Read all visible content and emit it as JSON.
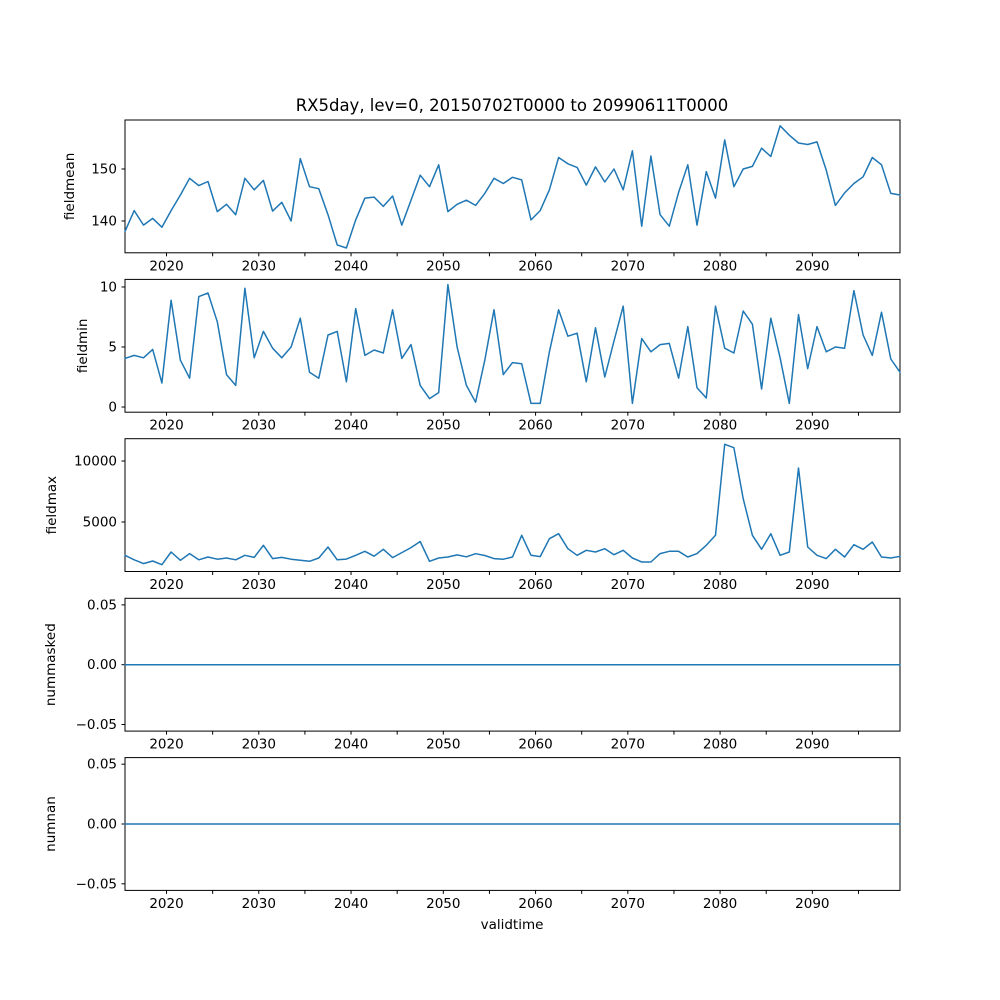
{
  "figure": {
    "title": "RX5day, lev=0, 20150702T0000 to 20990611T0000",
    "xlabel": "validtime",
    "background": "#ffffff",
    "line_color": "#1f77b4",
    "axis_color": "#000000"
  },
  "x_axis": {
    "label": "validtime",
    "major_tick_labels": [
      "2020",
      "2030",
      "2040",
      "2050",
      "2060",
      "2070",
      "2080",
      "2090"
    ],
    "major_ticks": [
      2020,
      2030,
      2040,
      2050,
      2060,
      2070,
      2080,
      2090
    ],
    "minor_ticks": [
      2025,
      2035,
      2045,
      2055,
      2065,
      2075,
      2085,
      2095
    ],
    "range": [
      2015.5,
      2099.5
    ]
  },
  "chart_data": [
    {
      "type": "line",
      "name": "fieldmean",
      "ylabel": "fieldmean",
      "x_start": 2015.5,
      "x_step": 1,
      "ylim": [
        133.88,
        159.42
      ],
      "ytick_values": [
        140,
        150
      ],
      "ytick_labels": [
        "140",
        "150"
      ],
      "values": [
        138.0,
        142.0,
        139.2,
        140.5,
        138.8,
        142.0,
        145.0,
        148.2,
        146.8,
        147.6,
        141.8,
        143.2,
        141.2,
        148.2,
        146.0,
        147.8,
        141.9,
        143.6,
        140.0,
        152.0,
        146.6,
        146.2,
        141.2,
        135.4,
        134.8,
        140.2,
        144.4,
        144.6,
        142.8,
        144.8,
        139.2,
        144.0,
        148.8,
        146.6,
        150.8,
        141.8,
        143.2,
        144.0,
        143.0,
        145.3,
        148.2,
        147.2,
        148.4,
        147.9,
        140.2,
        142.0,
        146.0,
        152.2,
        151.0,
        150.3,
        146.9,
        150.4,
        147.5,
        150.0,
        146.0,
        153.5,
        139.0,
        152.5,
        141.2,
        139.0,
        145.5,
        150.8,
        139.2,
        149.5,
        144.4,
        155.6,
        146.6,
        150.0,
        150.5,
        154.0,
        152.4,
        158.3,
        156.5,
        155.0,
        154.7,
        155.2,
        149.8,
        143.0,
        145.4,
        147.2,
        148.5,
        152.2,
        150.8,
        145.3,
        145.0
      ]
    },
    {
      "type": "line",
      "name": "fieldmin",
      "ylabel": "fieldmin",
      "x_start": 2015.5,
      "x_step": 1,
      "ylim": [
        -0.43,
        10.63
      ],
      "ytick_values": [
        0,
        5,
        10
      ],
      "ytick_labels": [
        "0",
        "5",
        "10"
      ],
      "values": [
        4.05,
        4.3,
        4.1,
        4.8,
        2.0,
        8.9,
        3.9,
        2.4,
        9.2,
        9.5,
        7.1,
        2.7,
        1.8,
        9.9,
        4.1,
        6.3,
        4.9,
        4.1,
        5.0,
        7.4,
        2.9,
        2.4,
        6.0,
        6.3,
        2.1,
        8.2,
        4.3,
        4.75,
        4.5,
        8.1,
        4.05,
        5.2,
        1.8,
        0.7,
        1.2,
        10.2,
        5.0,
        1.8,
        0.4,
        3.9,
        8.1,
        2.7,
        3.7,
        3.6,
        0.3,
        0.3,
        4.6,
        8.1,
        5.9,
        6.15,
        2.1,
        6.6,
        2.5,
        5.5,
        8.4,
        0.3,
        5.7,
        4.6,
        5.2,
        5.3,
        2.4,
        6.7,
        1.6,
        0.75,
        8.4,
        4.9,
        4.5,
        8.0,
        6.9,
        1.5,
        7.4,
        4.1,
        0.3,
        7.7,
        3.2,
        6.7,
        4.6,
        5.0,
        4.9,
        9.7,
        6.0,
        4.3,
        7.9,
        4.0,
        2.9
      ]
    },
    {
      "type": "line",
      "name": "fieldmax",
      "ylabel": "fieldmax",
      "x_start": 2015.5,
      "x_step": 1,
      "ylim": [
        942,
        11828
      ],
      "ytick_values": [
        5000,
        10000
      ],
      "ytick_labels": [
        "5000",
        "10000"
      ],
      "values": [
        2270,
        1900,
        1590,
        1800,
        1500,
        2540,
        1860,
        2410,
        1900,
        2130,
        1950,
        2050,
        1900,
        2270,
        2100,
        3090,
        2000,
        2100,
        1950,
        1860,
        1780,
        2050,
        2950,
        1900,
        1960,
        2270,
        2600,
        2200,
        2760,
        2080,
        2490,
        2900,
        3400,
        1780,
        2050,
        2130,
        2300,
        2150,
        2400,
        2250,
        2000,
        1950,
        2130,
        3910,
        2270,
        2160,
        3630,
        4040,
        2810,
        2270,
        2680,
        2540,
        2810,
        2320,
        2680,
        2050,
        1720,
        1720,
        2410,
        2600,
        2600,
        2130,
        2410,
        3090,
        3910,
        11365,
        11090,
        6910,
        3910,
        2760,
        4040,
        2270,
        2540,
        9425,
        2950,
        2270,
        2000,
        2760,
        2130,
        3140,
        2760,
        3360,
        2130,
        2050,
        2190
      ]
    },
    {
      "type": "line",
      "name": "nummasked",
      "ylabel": "nummasked",
      "x_start": 2015.5,
      "x_step": 1,
      "ylim": [
        -0.0555,
        0.0555
      ],
      "ytick_values": [
        -0.05,
        0.0,
        0.05
      ],
      "ytick_labels": [
        "−0.05",
        "0.00",
        "0.05"
      ],
      "constant_value": 0
    },
    {
      "type": "line",
      "name": "numnan",
      "ylabel": "numnan",
      "x_start": 2015.5,
      "x_step": 1,
      "ylim": [
        -0.0555,
        0.0555
      ],
      "ytick_values": [
        -0.05,
        0.0,
        0.05
      ],
      "ytick_labels": [
        "−0.05",
        "0.00",
        "0.05"
      ],
      "constant_value": 0
    }
  ]
}
